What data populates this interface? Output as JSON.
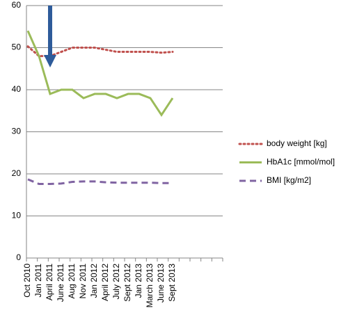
{
  "chart_data": {
    "type": "line",
    "categories": [
      "Oct 2010",
      "Jan 2011",
      "April 2011",
      "June 2011",
      "Aug 2011",
      "Nov 2011",
      "Jan 2012",
      "April 2012",
      "July 2012",
      "Sept 2012",
      "Jan 2013",
      "March 2013",
      "June 2013",
      "Sept 2013",
      null,
      null,
      null,
      null
    ],
    "series": [
      {
        "name": "body weight [kg]",
        "color": "#c0504d",
        "dash": "dotted",
        "values": [
          50.3,
          48,
          48,
          49,
          50,
          50,
          50,
          49.5,
          49,
          49,
          49,
          49,
          48.8,
          49,
          null,
          null,
          null,
          null
        ]
      },
      {
        "name": "HbA1c [mmol/mol]",
        "color": "#9bbb59",
        "dash": "solid",
        "values": [
          54,
          48,
          39,
          40,
          40,
          38,
          39,
          39,
          38,
          39,
          39,
          38,
          34,
          38,
          null,
          null,
          null,
          null
        ]
      },
      {
        "name": "BMI [kg/m2]",
        "color": "#8064a2",
        "dash": "dashed",
        "values": [
          18.7,
          17.6,
          17.6,
          17.7,
          18.1,
          18.2,
          18.2,
          18.0,
          17.9,
          17.9,
          17.9,
          17.9,
          17.8,
          17.8,
          null,
          null,
          null,
          null
        ]
      }
    ],
    "ylim": [
      0,
      60
    ],
    "yticks": [
      0,
      10,
      20,
      30,
      40,
      50,
      60
    ],
    "grid": true,
    "legend": "right"
  }
}
